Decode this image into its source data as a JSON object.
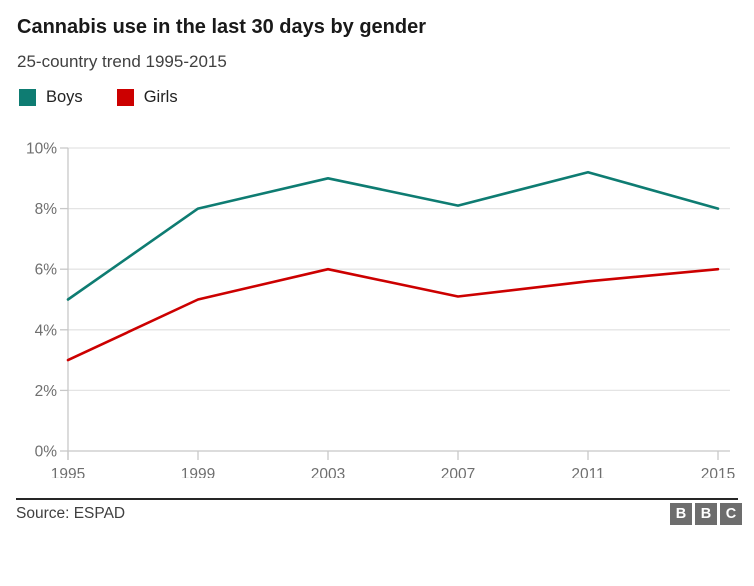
{
  "header": {
    "title": "Cannabis use in the last 30 days by gender",
    "subtitle": "25-country trend 1995-2015"
  },
  "chart_data": {
    "type": "line",
    "title": "Cannabis use in the last 30 days by gender",
    "subtitle": "25-country trend 1995-2015",
    "x": [
      1995,
      1999,
      2003,
      2007,
      2011,
      2015
    ],
    "xticklabels": [
      "1995",
      "1999",
      "2003",
      "2007",
      "2011",
      "2015"
    ],
    "series": [
      {
        "name": "Boys",
        "color": "#0e7c72",
        "values": [
          5.0,
          8.0,
          9.0,
          8.1,
          9.2,
          8.0
        ]
      },
      {
        "name": "Girls",
        "color": "#cc0000",
        "values": [
          3.0,
          5.0,
          6.0,
          5.1,
          5.6,
          6.0
        ]
      }
    ],
    "ylim": [
      0,
      10
    ],
    "yticks": [
      0,
      2,
      4,
      6,
      8,
      10
    ],
    "yticklabels": [
      "0%",
      "2%",
      "4%",
      "6%",
      "8%",
      "10%"
    ],
    "grid": true,
    "legend_position": "top-left",
    "xlabel": "",
    "ylabel": ""
  },
  "footer": {
    "source": "Source: ESPAD",
    "logo_letters": [
      "B",
      "B",
      "C"
    ]
  },
  "colors": {
    "boys_line": "#0e7c72",
    "girls_line": "#cc0000",
    "gridline": "#e4e4e4",
    "axis": "#c8c8c8",
    "tick_label": "#6f6f6f",
    "divider": "#262626",
    "bbc_box": "#6d6d6d"
  }
}
